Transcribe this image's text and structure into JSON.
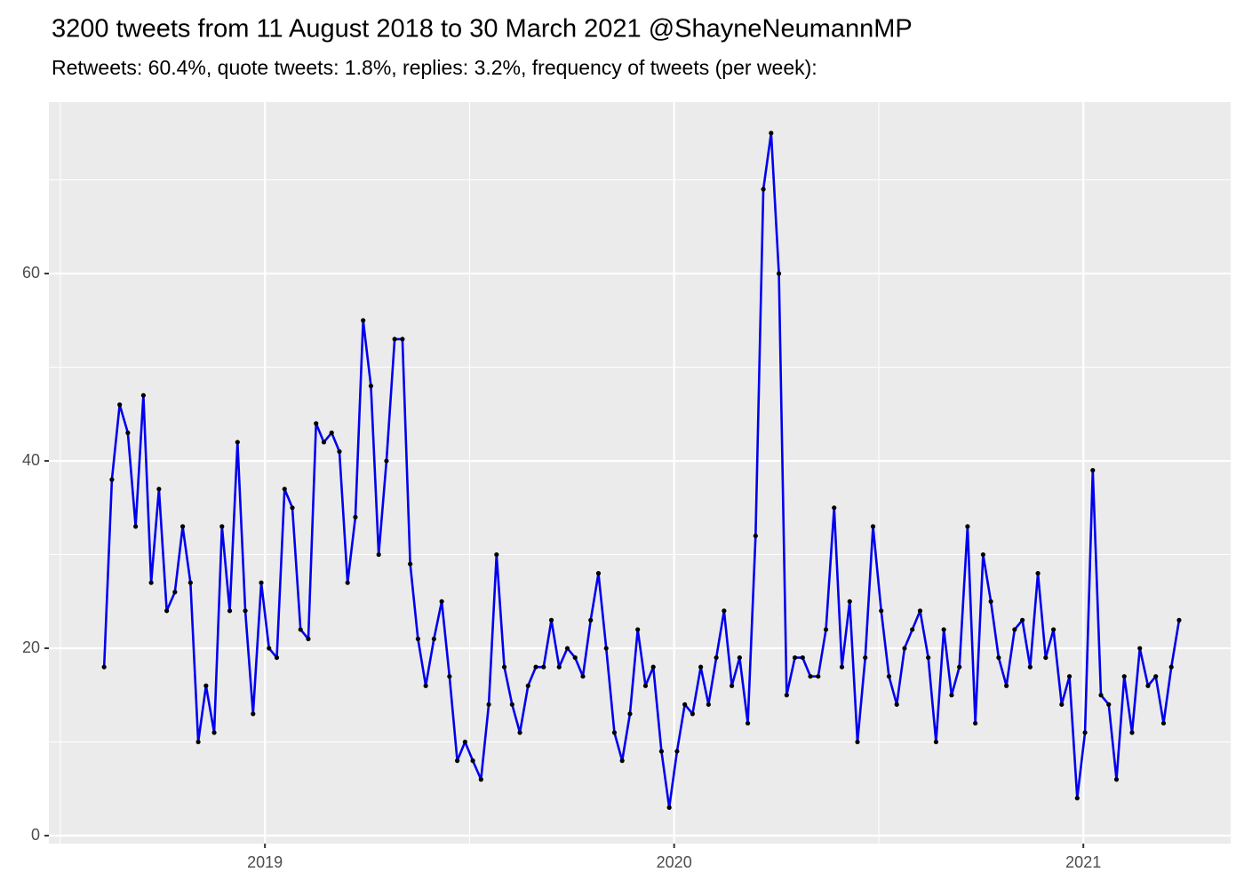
{
  "chart_data": {
    "type": "line",
    "title": "3200 tweets from 11 August 2018 to 30 March 2021 @ShayneNeumannMP",
    "subtitle": "Retweets: 60.4%, quote tweets: 1.8%, replies: 3.2%, frequency of tweets (per week):",
    "x": [
      2018.607,
      2018.626,
      2018.645,
      2018.665,
      2018.684,
      2018.703,
      2018.722,
      2018.741,
      2018.76,
      2018.78,
      2018.799,
      2018.818,
      2018.837,
      2018.856,
      2018.876,
      2018.895,
      2018.914,
      2018.933,
      2018.952,
      2018.971,
      2018.991,
      2019.01,
      2019.029,
      2019.048,
      2019.067,
      2019.087,
      2019.106,
      2019.125,
      2019.144,
      2019.163,
      2019.182,
      2019.202,
      2019.221,
      2019.24,
      2019.259,
      2019.278,
      2019.297,
      2019.317,
      2019.336,
      2019.355,
      2019.374,
      2019.393,
      2019.413,
      2019.432,
      2019.451,
      2019.47,
      2019.489,
      2019.508,
      2019.528,
      2019.547,
      2019.566,
      2019.585,
      2019.604,
      2019.623,
      2019.643,
      2019.662,
      2019.681,
      2019.7,
      2019.719,
      2019.739,
      2019.758,
      2019.777,
      2019.796,
      2019.815,
      2019.834,
      2019.854,
      2019.873,
      2019.892,
      2019.911,
      2019.93,
      2019.949,
      2019.969,
      2019.988,
      2020.007,
      2020.026,
      2020.045,
      2020.065,
      2020.084,
      2020.103,
      2020.122,
      2020.141,
      2020.16,
      2020.18,
      2020.199,
      2020.218,
      2020.237,
      2020.256,
      2020.275,
      2020.295,
      2020.314,
      2020.333,
      2020.352,
      2020.371,
      2020.391,
      2020.41,
      2020.429,
      2020.448,
      2020.467,
      2020.486,
      2020.506,
      2020.525,
      2020.544,
      2020.563,
      2020.582,
      2020.601,
      2020.621,
      2020.64,
      2020.659,
      2020.678,
      2020.697,
      2020.717,
      2020.736,
      2020.755,
      2020.774,
      2020.793,
      2020.812,
      2020.832,
      2020.851,
      2020.87,
      2020.889,
      2020.908,
      2020.927,
      2020.947,
      2020.966,
      2020.985,
      2021.004,
      2021.023,
      2021.043,
      2021.062,
      2021.081,
      2021.1,
      2021.119,
      2021.138,
      2021.158,
      2021.177,
      2021.196,
      2021.215,
      2021.234
    ],
    "values": [
      18,
      38,
      46,
      43,
      33,
      47,
      27,
      37,
      24,
      26,
      33,
      27,
      10,
      16,
      11,
      33,
      24,
      42,
      24,
      13,
      27,
      20,
      19,
      37,
      35,
      22,
      21,
      44,
      42,
      43,
      41,
      27,
      34,
      55,
      48,
      30,
      40,
      53,
      53,
      29,
      21,
      16,
      21,
      25,
      17,
      8,
      10,
      8,
      6,
      14,
      30,
      18,
      14,
      11,
      16,
      18,
      18,
      23,
      18,
      20,
      19,
      17,
      23,
      28,
      20,
      11,
      8,
      13,
      22,
      16,
      18,
      9,
      3,
      9,
      14,
      13,
      18,
      14,
      19,
      24,
      16,
      19,
      12,
      32,
      69,
      75,
      60,
      15,
      19,
      19,
      17,
      17,
      22,
      35,
      18,
      25,
      10,
      19,
      33,
      24,
      17,
      14,
      20,
      22,
      24,
      19,
      10,
      22,
      15,
      18,
      33,
      12,
      30,
      25,
      19,
      16,
      22,
      23,
      18,
      28,
      19,
      22,
      14,
      17,
      4,
      11,
      39,
      15,
      14,
      6,
      17,
      11,
      20,
      16,
      17,
      12,
      18,
      23
    ],
    "color": "#0000ee",
    "marker_color": "#000000",
    "xlim": [
      2018.472,
      2021.36
    ],
    "xticks": [
      2019,
      2020,
      2021
    ],
    "ylim": [
      -0.85,
      78.3
    ],
    "yticks": [
      0,
      20,
      40,
      60
    ],
    "grid": true
  }
}
